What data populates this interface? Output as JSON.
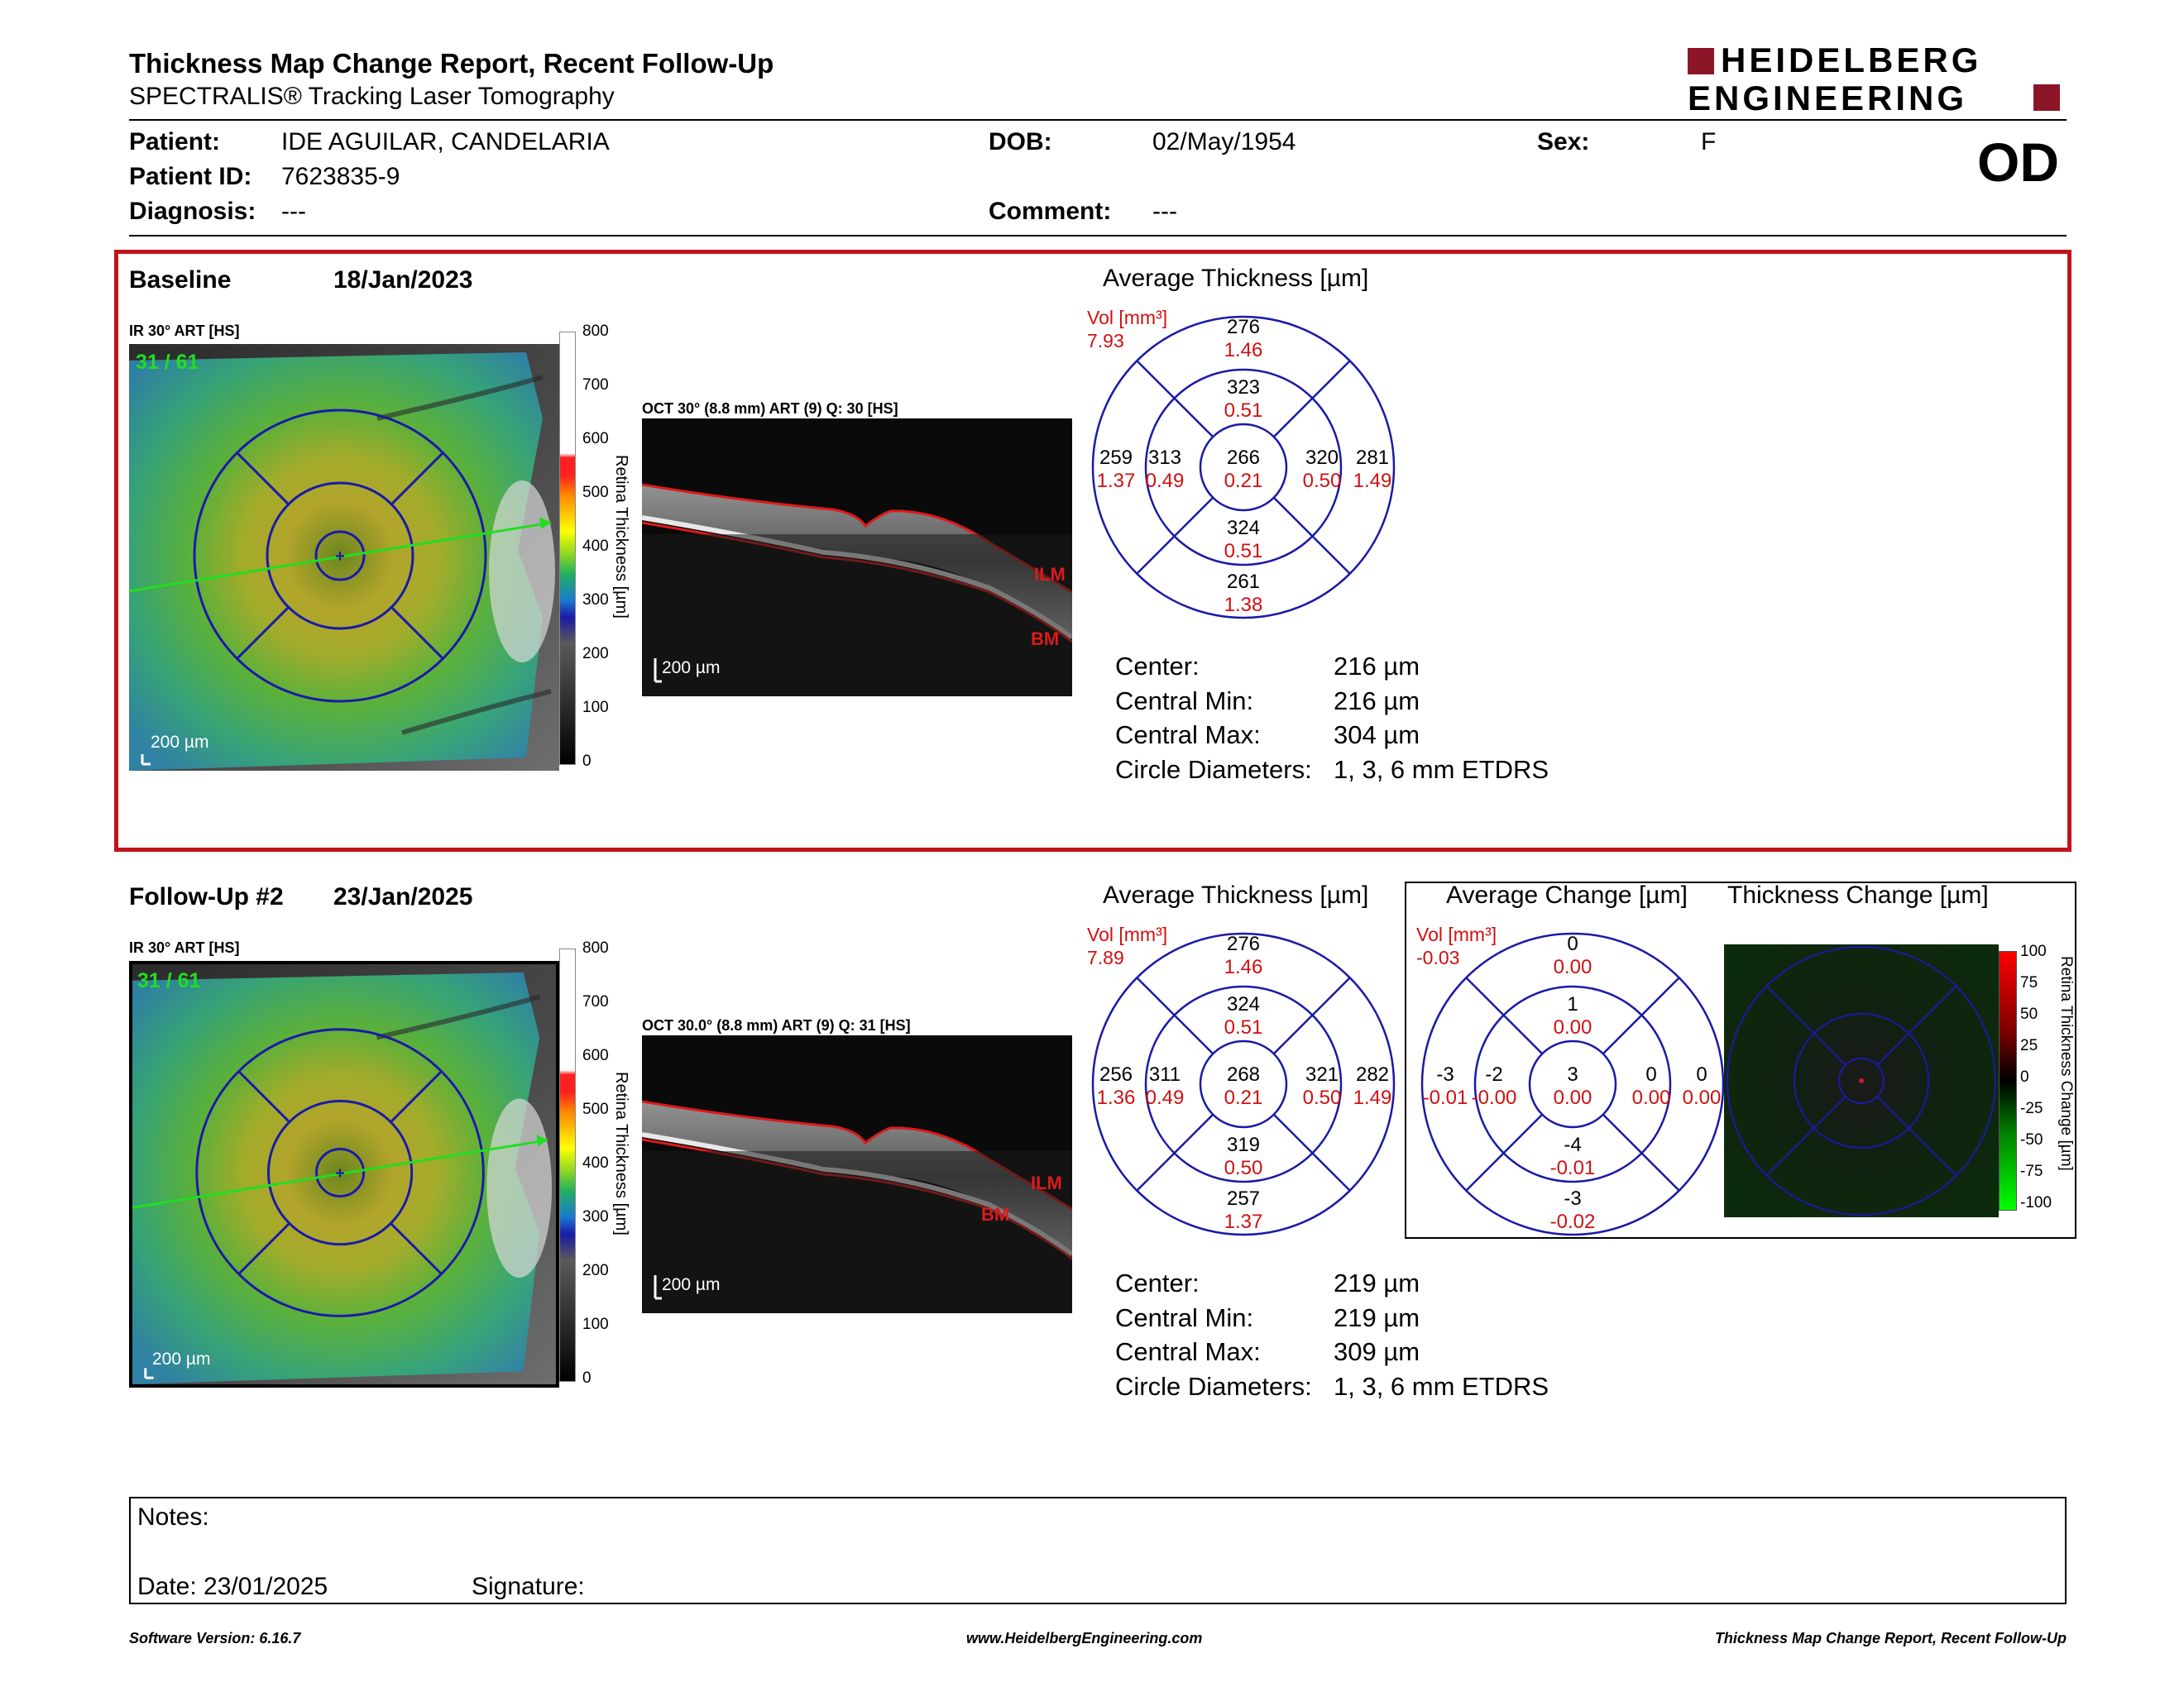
{
  "header": {
    "title": "Thickness Map Change Report, Recent Follow-Up",
    "subtitle": "SPECTRALIS® Tracking Laser Tomography",
    "logo_line1": "HEIDELBERG",
    "logo_line2": "ENGINEERING",
    "eye": "OD"
  },
  "patient": {
    "patient_label": "Patient:",
    "patient_value": "IDE AGUILAR, CANDELARIA",
    "id_label": "Patient ID:",
    "id_value": "7623835-9",
    "diag_label": "Diagnosis:",
    "diag_value": "---",
    "dob_label": "DOB:",
    "dob_value": "02/May/1954",
    "comment_label": "Comment:",
    "comment_value": "---",
    "sex_label": "Sex:",
    "sex_value": "F"
  },
  "baseline": {
    "label": "Baseline",
    "date": "18/Jan/2023",
    "ir_label": "IR 30° ART [HS]",
    "counter": "31 / 61",
    "scale": "200 µm",
    "oct_label": "OCT 30° (8.8 mm) ART (9) Q: 30 [HS]",
    "oct_scale": "200 µm",
    "ilm": "ILM",
    "bm": "BM",
    "colorbar_title": "Retina Thickness [µm]",
    "colorbar_ticks": [
      "800",
      "700",
      "600",
      "500",
      "400",
      "300",
      "200",
      "100",
      "0"
    ],
    "avg_title": "Average Thickness [µm]",
    "vol_label": "Vol [mm³]",
    "vol_value": "7.93",
    "grid": {
      "center": [
        "266",
        "0.21"
      ],
      "inner_sup": [
        "323",
        "0.51"
      ],
      "inner_inf": [
        "324",
        "0.51"
      ],
      "inner_nas": [
        "313",
        "0.49"
      ],
      "inner_temp": [
        "320",
        "0.50"
      ],
      "outer_sup": [
        "276",
        "1.46"
      ],
      "outer_inf": [
        "261",
        "1.38"
      ],
      "outer_nas": [
        "259",
        "1.37"
      ],
      "outer_temp": [
        "281",
        "1.49"
      ]
    },
    "stats": [
      {
        "label": "Center:",
        "value": "216 µm"
      },
      {
        "label": "Central Min:",
        "value": "216 µm"
      },
      {
        "label": "Central Max:",
        "value": "304 µm"
      },
      {
        "label": "Circle Diameters:",
        "value": "1, 3, 6 mm ETDRS"
      }
    ]
  },
  "followup": {
    "label": "Follow-Up #2",
    "date": "23/Jan/2025",
    "ir_label": "IR 30° ART [HS]",
    "counter": "31 / 61",
    "scale": "200 µm",
    "oct_label": "OCT 30.0° (8.8 mm) ART (9) Q: 31 [HS]",
    "oct_scale": "200 µm",
    "ilm": "ILM",
    "bm": "BM",
    "colorbar_title": "Retina Thickness [µm]",
    "colorbar_ticks": [
      "800",
      "700",
      "600",
      "500",
      "400",
      "300",
      "200",
      "100",
      "0"
    ],
    "avg_title": "Average Thickness [µm]",
    "vol_label": "Vol [mm³]",
    "vol_value": "7.89",
    "grid": {
      "center": [
        "268",
        "0.21"
      ],
      "inner_sup": [
        "324",
        "0.51"
      ],
      "inner_inf": [
        "319",
        "0.50"
      ],
      "inner_nas": [
        "311",
        "0.49"
      ],
      "inner_temp": [
        "321",
        "0.50"
      ],
      "outer_sup": [
        "276",
        "1.46"
      ],
      "outer_inf": [
        "257",
        "1.37"
      ],
      "outer_nas": [
        "256",
        "1.36"
      ],
      "outer_temp": [
        "282",
        "1.49"
      ]
    },
    "stats": [
      {
        "label": "Center:",
        "value": "219 µm"
      },
      {
        "label": "Central Min:",
        "value": "219 µm"
      },
      {
        "label": "Central Max:",
        "value": "309 µm"
      },
      {
        "label": "Circle Diameters:",
        "value": "1, 3, 6 mm ETDRS"
      }
    ]
  },
  "change": {
    "avg_title": "Average Change [µm]",
    "vol_label": "Vol [mm³]",
    "vol_value": "-0.03",
    "grid": {
      "center": [
        "3",
        "0.00"
      ],
      "inner_sup": [
        "1",
        "0.00"
      ],
      "inner_inf": [
        "-4",
        "-0.01"
      ],
      "inner_nas": [
        "-2",
        "-0.00"
      ],
      "inner_temp": [
        "0",
        "0.00"
      ],
      "outer_sup": [
        "0",
        "0.00"
      ],
      "outer_inf": [
        "-3",
        "-0.02"
      ],
      "outer_nas": [
        "-3",
        "-0.01"
      ],
      "outer_temp": [
        "0",
        "0.00"
      ]
    },
    "map_title": "Thickness Change [µm]",
    "colorbar_title": "Retina Thickness Change [µm]",
    "colorbar_ticks": [
      "100",
      "75",
      "50",
      "25",
      "0",
      "-25",
      "-50",
      "-75",
      "-100"
    ]
  },
  "notes": {
    "notes_label": "Notes:",
    "date_label": "Date: 23/01/2025",
    "signature_label": "Signature:"
  },
  "footer": {
    "version": "Software Version: 6.16.7",
    "url": "www.HeidelbergEngineering.com",
    "report": "Thickness Map Change Report, Recent Follow-Up"
  },
  "colors": {
    "frame_red": "#c0141c",
    "grid_blue": "#1a1aa8",
    "value_red": "#d01010",
    "logo_red": "#8c1628",
    "scan_green": "#22dd22"
  }
}
